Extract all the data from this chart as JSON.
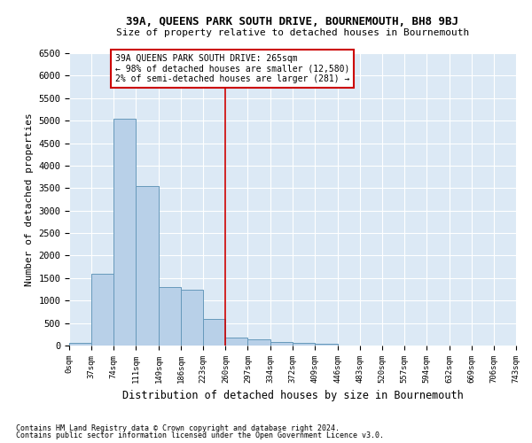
{
  "title1": "39A, QUEENS PARK SOUTH DRIVE, BOURNEMOUTH, BH8 9BJ",
  "title2": "Size of property relative to detached houses in Bournemouth",
  "xlabel": "Distribution of detached houses by size in Bournemouth",
  "ylabel": "Number of detached properties",
  "footer1": "Contains HM Land Registry data © Crown copyright and database right 2024.",
  "footer2": "Contains public sector information licensed under the Open Government Licence v3.0.",
  "annotation_line1": "39A QUEENS PARK SOUTH DRIVE: 265sqm",
  "annotation_line2": "← 98% of detached houses are smaller (12,580)",
  "annotation_line3": "2% of semi-detached houses are larger (281) →",
  "bar_color": "#b8d0e8",
  "bar_edge_color": "#6699bb",
  "background_color": "#dce9f5",
  "grid_color": "#ffffff",
  "annotation_box_color": "#ffffff",
  "annotation_box_edge": "#cc0000",
  "vline_color": "#cc0000",
  "bin_edges": [
    0,
    37,
    74,
    111,
    149,
    186,
    223,
    260,
    297,
    334,
    372,
    409,
    446,
    483,
    520,
    557,
    594,
    632,
    669,
    706,
    743
  ],
  "bin_labels": [
    "0sqm",
    "37sqm",
    "74sqm",
    "111sqm",
    "149sqm",
    "186sqm",
    "223sqm",
    "260sqm",
    "297sqm",
    "334sqm",
    "372sqm",
    "409sqm",
    "446sqm",
    "483sqm",
    "520sqm",
    "557sqm",
    "594sqm",
    "632sqm",
    "669sqm",
    "706sqm",
    "743sqm"
  ],
  "bar_heights": [
    50,
    1600,
    5050,
    3550,
    1300,
    1250,
    600,
    180,
    130,
    80,
    50,
    30,
    0,
    0,
    0,
    0,
    0,
    0,
    0,
    0
  ],
  "ylim": [
    0,
    6500
  ],
  "yticks": [
    0,
    500,
    1000,
    1500,
    2000,
    2500,
    3000,
    3500,
    4000,
    4500,
    5000,
    5500,
    6000,
    6500
  ],
  "vline_x": 260,
  "fig_width": 6.0,
  "fig_height": 5.0,
  "dpi": 100
}
